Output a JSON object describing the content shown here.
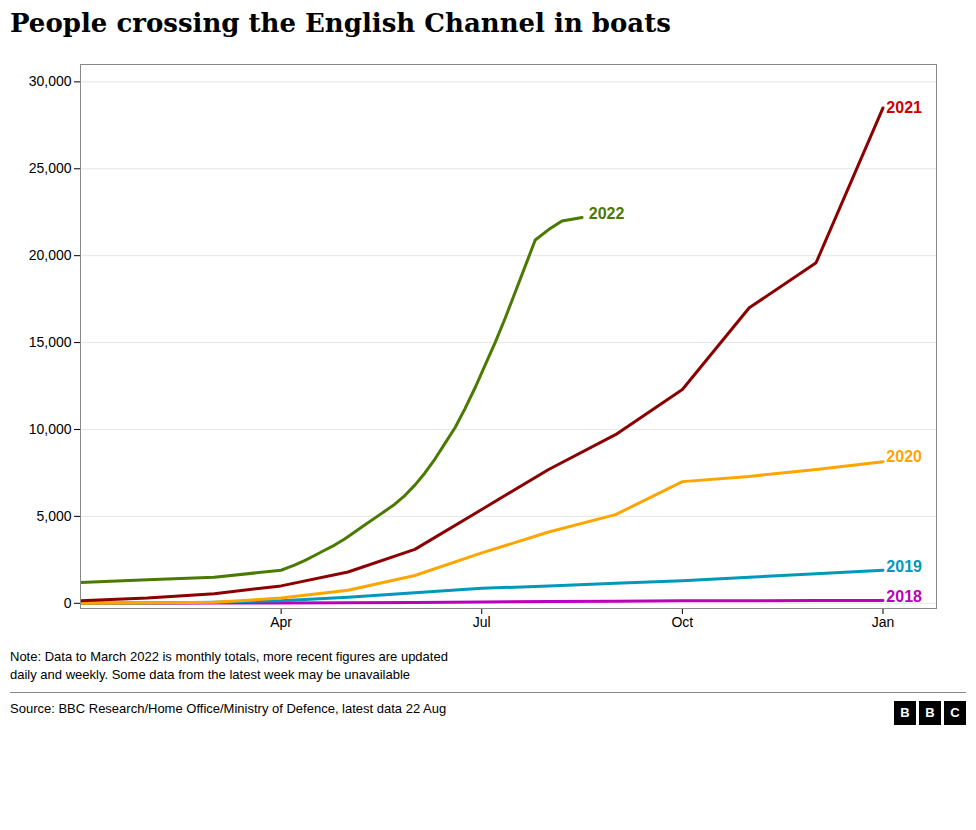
{
  "chart_data": {
    "type": "line",
    "title": "People crossing the English Channel in boats",
    "note": "Note: Data to March 2022 is monthly totals, more recent figures are updated\ndaily and weekly. Some data from the latest week may be unavailable",
    "source": "Source: BBC Research/Home Office/Ministry of Defence, latest data 22 Aug",
    "logo": "BBC",
    "xlim": [
      0,
      12.8
    ],
    "xticks": [
      {
        "value": 3,
        "label": "Apr"
      },
      {
        "value": 6,
        "label": "Jul"
      },
      {
        "value": 9,
        "label": "Oct"
      },
      {
        "value": 12,
        "label": "Jan"
      }
    ],
    "ylim": [
      -300,
      31000
    ],
    "yticks": [
      0,
      {
        "value": 5000,
        "label": "5,000"
      },
      {
        "value": 10000,
        "label": "10,000"
      },
      {
        "value": 15000,
        "label": "15,000"
      },
      {
        "value": 20000,
        "label": "20,000"
      },
      {
        "value": 25000,
        "label": "25,000"
      },
      {
        "value": 30000,
        "label": "30,000"
      }
    ],
    "grid": true,
    "series": [
      {
        "name": "2018",
        "color": "#BB00BB",
        "x": [
          0,
          1,
          2,
          3,
          4,
          5,
          6,
          7,
          8,
          9,
          10,
          11,
          12
        ],
        "values": [
          0,
          5,
          10,
          15,
          30,
          50,
          80,
          100,
          120,
          140,
          150,
          155,
          160
        ]
      },
      {
        "name": "2019",
        "color": "#0099BB",
        "x": [
          0,
          1,
          2,
          3,
          4,
          5,
          6,
          7,
          8,
          9,
          10,
          11,
          12
        ],
        "values": [
          0,
          20,
          60,
          150,
          350,
          600,
          860,
          1000,
          1150,
          1300,
          1500,
          1700,
          1900
        ]
      },
      {
        "name": "2020",
        "color": "#FFA500",
        "x": [
          0,
          1,
          2,
          3,
          4,
          5,
          6,
          7,
          8,
          9,
          10,
          11,
          12
        ],
        "values": [
          0,
          20,
          60,
          300,
          750,
          1600,
          2900,
          4100,
          5100,
          7000,
          7300,
          7700,
          8150
        ]
      },
      {
        "name": "2021",
        "color": "#8B0000",
        "x": [
          0,
          1,
          2,
          3,
          4,
          5,
          6,
          7,
          8,
          9,
          10,
          11,
          12
        ],
        "values": [
          150,
          300,
          550,
          1000,
          1800,
          3100,
          5400,
          7700,
          9700,
          12300,
          17000,
          19600,
          28500
        ]
      },
      {
        "name": "2022",
        "color": "#4A7A00",
        "x": [
          0,
          1,
          2,
          3,
          3.1,
          3.2,
          3.35,
          3.5,
          3.65,
          3.8,
          3.95,
          4.1,
          4.25,
          4.4,
          4.55,
          4.7,
          4.85,
          5.0,
          5.15,
          5.3,
          5.45,
          5.6,
          5.75,
          5.9,
          6.05,
          6.2,
          6.35,
          6.5,
          6.65,
          6.8,
          7.0,
          7.2,
          7.5
        ],
        "values": [
          1200,
          1350,
          1500,
          1900,
          2050,
          2200,
          2450,
          2750,
          3050,
          3350,
          3700,
          4100,
          4500,
          4900,
          5300,
          5700,
          6200,
          6800,
          7500,
          8300,
          9200,
          10100,
          11200,
          12400,
          13700,
          15000,
          16400,
          17900,
          19400,
          20900,
          21500,
          22000,
          22200
        ]
      }
    ],
    "annotations": [
      {
        "text": "2021",
        "x": 12.05,
        "y": 28500,
        "color": "#CC0000"
      },
      {
        "text": "2022",
        "x": 7.6,
        "y": 22400,
        "color": "#4A7A00"
      },
      {
        "text": "2020",
        "x": 12.05,
        "y": 8400,
        "color": "#FFA500"
      },
      {
        "text": "2019",
        "x": 12.05,
        "y": 2100,
        "color": "#0099BB"
      },
      {
        "text": "2018",
        "x": 12.05,
        "y": 360,
        "color": "#BB00BB"
      }
    ]
  }
}
